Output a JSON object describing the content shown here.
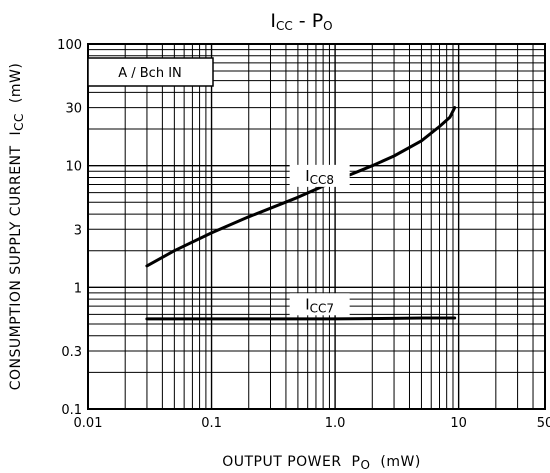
{
  "chart_data": {
    "type": "line",
    "title": {
      "main": "I",
      "sub": "CC",
      "separator": " - ",
      "main2": "P",
      "sub2": "O"
    },
    "xlabel": {
      "main": "OUTPUT POWER  P",
      "sub": "O",
      "unit": "(mW)"
    },
    "ylabel": {
      "main": "CONSUMPTION SUPPLY CURRENT  I",
      "sub": "CC",
      "unit": "(mW)"
    },
    "annotation": "A / Bch  IN",
    "x_scale": "log",
    "y_scale": "log",
    "xlim": [
      0.01,
      50
    ],
    "ylim": [
      0.1,
      100
    ],
    "x_ticks": [
      {
        "value": 0.01,
        "label": "0.01"
      },
      {
        "value": 0.1,
        "label": "0.1"
      },
      {
        "value": 1,
        "label": "1.0"
      },
      {
        "value": 10,
        "label": "10"
      },
      {
        "value": 50,
        "label": "50"
      }
    ],
    "y_ticks": [
      {
        "value": 0.1,
        "label": "0.1"
      },
      {
        "value": 0.3,
        "label": "0.3"
      },
      {
        "value": 1,
        "label": "1"
      },
      {
        "value": 3,
        "label": "3"
      },
      {
        "value": 10,
        "label": "10"
      },
      {
        "value": 30,
        "label": "30"
      },
      {
        "value": 100,
        "label": "100"
      }
    ],
    "grid": true,
    "series": [
      {
        "name": {
          "main": "I",
          "sub": "CC8"
        },
        "label_at": [
          0.75,
          7.5
        ],
        "points": [
          [
            0.03,
            1.5
          ],
          [
            0.05,
            2.0
          ],
          [
            0.1,
            2.8
          ],
          [
            0.2,
            3.8
          ],
          [
            0.5,
            5.5
          ],
          [
            1,
            7.5
          ],
          [
            2,
            10
          ],
          [
            3,
            12
          ],
          [
            5,
            16
          ],
          [
            7,
            21
          ],
          [
            8.5,
            25
          ],
          [
            9.3,
            30
          ]
        ]
      },
      {
        "name": {
          "main": "I",
          "sub": "CC7"
        },
        "label_at": [
          0.75,
          0.66
        ],
        "points": [
          [
            0.03,
            0.55
          ],
          [
            0.1,
            0.55
          ],
          [
            1,
            0.55
          ],
          [
            3,
            0.555
          ],
          [
            5,
            0.56
          ],
          [
            9.3,
            0.56
          ]
        ]
      }
    ]
  }
}
